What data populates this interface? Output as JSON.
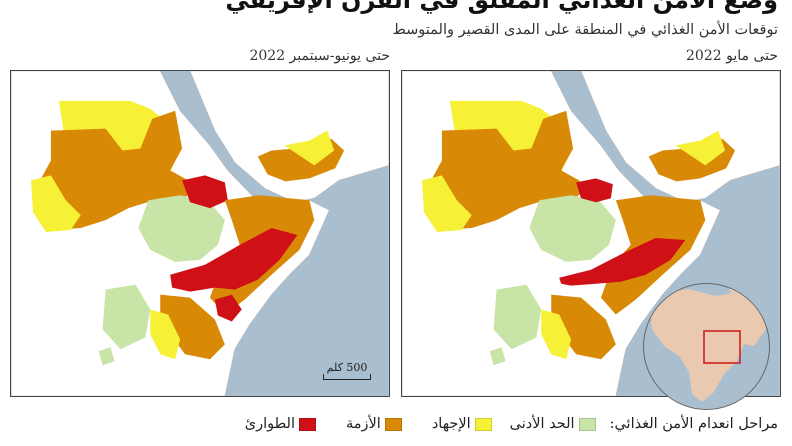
{
  "title": "وضع الأمن الغذائي المقلق في القرن الإفريقي",
  "subtitle": "توقعات الأمن الغذائي في المنطقة على المدى القصير والمتوسط",
  "panels": [
    {
      "label": "حتى يونيو-سبتمبر 2022"
    },
    {
      "label": "حتى مايو 2022"
    }
  ],
  "scale_bar": {
    "label": "500 كلم"
  },
  "legend": {
    "title": "مراحل انعدام الأمن الغذائي:",
    "items": [
      {
        "label": "الحد الأدنى",
        "color": "#c8e4a6"
      },
      {
        "label": "الإجهاد",
        "color": "#f6f036"
      },
      {
        "label": "الأزمة",
        "color": "#d88a06"
      },
      {
        "label": "الطوارئ",
        "color": "#cf1016"
      }
    ]
  },
  "colors": {
    "sea": "#a9bfd0",
    "land": "#ffffff",
    "minimal": "#c8e4a6",
    "stressed": "#f6f036",
    "crisis": "#d88a06",
    "emergency": "#cf1016",
    "locator_land": "#e9c9b0",
    "locator_box": "#d0201c"
  }
}
